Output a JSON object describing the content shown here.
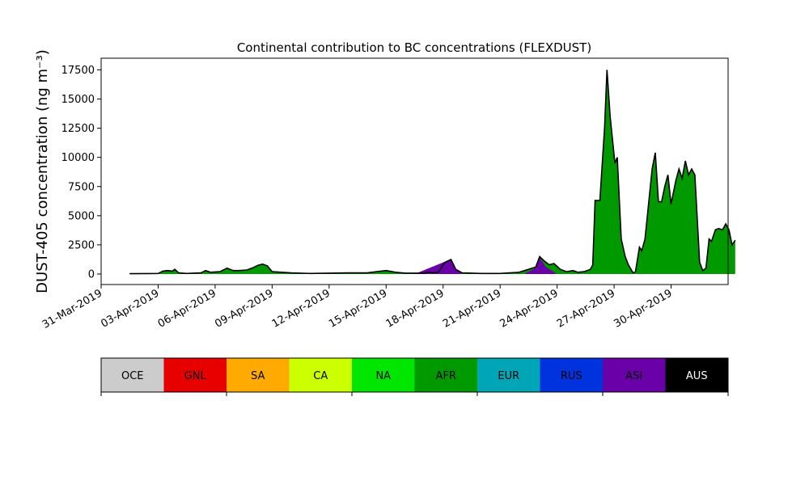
{
  "chart_data": {
    "type": "area",
    "title": "Continental contribution to BC concentrations (FLEXDUST)",
    "ylabel": "DUST-405 concentration (ng m⁻³)",
    "xlabel": "",
    "ylim": [
      -900,
      18500
    ],
    "xlim": [
      "2019-03-31T00:00",
      "2019-05-03T00:00"
    ],
    "yticks": [
      0,
      2500,
      5000,
      7500,
      10000,
      12500,
      15000,
      17500
    ],
    "xticks": [
      "31-Mar-2019",
      "03-Apr-2019",
      "06-Apr-2019",
      "09-Apr-2019",
      "12-Apr-2019",
      "15-Apr-2019",
      "18-Apr-2019",
      "21-Apr-2019",
      "24-Apr-2019",
      "27-Apr-2019",
      "30-Apr-2019"
    ],
    "grid": false,
    "series_total": {
      "name": "",
      "color": "#000000",
      "points": [
        [
          "2019-04-01T12:00",
          30
        ],
        [
          "2019-04-02T12:00",
          40
        ],
        [
          "2019-04-03T00:00",
          50
        ],
        [
          "2019-04-03T06:00",
          250
        ],
        [
          "2019-04-03T12:00",
          300
        ],
        [
          "2019-04-03T18:00",
          250
        ],
        [
          "2019-04-03T21:00",
          400
        ],
        [
          "2019-04-04T02:00",
          100
        ],
        [
          "2019-04-04T12:00",
          50
        ],
        [
          "2019-04-05T06:00",
          100
        ],
        [
          "2019-04-05T12:00",
          300
        ],
        [
          "2019-04-05T18:00",
          150
        ],
        [
          "2019-04-06T06:00",
          200
        ],
        [
          "2019-04-06T15:00",
          500
        ],
        [
          "2019-04-06T23:00",
          300
        ],
        [
          "2019-04-07T06:00",
          300
        ],
        [
          "2019-04-07T16:00",
          350
        ],
        [
          "2019-04-08T00:00",
          550
        ],
        [
          "2019-04-08T06:00",
          750
        ],
        [
          "2019-04-08T12:00",
          850
        ],
        [
          "2019-04-08T18:00",
          700
        ],
        [
          "2019-04-09T00:00",
          200
        ],
        [
          "2019-04-09T12:00",
          150
        ],
        [
          "2019-04-10T00:00",
          100
        ],
        [
          "2019-04-11T00:00",
          50
        ],
        [
          "2019-04-12T00:00",
          80
        ],
        [
          "2019-04-13T00:00",
          100
        ],
        [
          "2019-04-14T00:00",
          100
        ],
        [
          "2019-04-14T12:00",
          200
        ],
        [
          "2019-04-15T00:00",
          300
        ],
        [
          "2019-04-15T12:00",
          150
        ],
        [
          "2019-04-16T00:00",
          80
        ],
        [
          "2019-04-16T12:00",
          80
        ],
        [
          "2019-04-17T00:00",
          80
        ],
        [
          "2019-04-17T06:00",
          150
        ],
        [
          "2019-04-17T12:00",
          100
        ],
        [
          "2019-04-17T18:00",
          150
        ],
        [
          "2019-04-18T02:00",
          1000
        ],
        [
          "2019-04-18T10:00",
          1250
        ],
        [
          "2019-04-18T16:00",
          400
        ],
        [
          "2019-04-19T00:00",
          100
        ],
        [
          "2019-04-20T00:00",
          50
        ],
        [
          "2019-04-21T00:00",
          50
        ],
        [
          "2019-04-21T12:00",
          100
        ],
        [
          "2019-04-22T00:00",
          150
        ],
        [
          "2019-04-22T12:00",
          400
        ],
        [
          "2019-04-22T21:00",
          600
        ],
        [
          "2019-04-23T02:00",
          1500
        ],
        [
          "2019-04-23T08:00",
          1100
        ],
        [
          "2019-04-23T14:00",
          800
        ],
        [
          "2019-04-23T20:00",
          900
        ],
        [
          "2019-04-24T04:00",
          400
        ],
        [
          "2019-04-24T12:00",
          200
        ],
        [
          "2019-04-24T20:00",
          300
        ],
        [
          "2019-04-25T02:00",
          150
        ],
        [
          "2019-04-25T10:00",
          200
        ],
        [
          "2019-04-25T18:00",
          400
        ],
        [
          "2019-04-25T21:00",
          800
        ],
        [
          "2019-04-26T00:00",
          6300
        ],
        [
          "2019-04-26T06:00",
          6300
        ],
        [
          "2019-04-26T12:00",
          12500
        ],
        [
          "2019-04-26T15:00",
          17500
        ],
        [
          "2019-04-26T19:00",
          13500
        ],
        [
          "2019-04-27T01:00",
          9500
        ],
        [
          "2019-04-27T04:00",
          10000
        ],
        [
          "2019-04-27T09:00",
          3000
        ],
        [
          "2019-04-27T14:00",
          1500
        ],
        [
          "2019-04-27T18:00",
          800
        ],
        [
          "2019-04-28T00:00",
          100
        ],
        [
          "2019-04-28T03:00",
          200
        ],
        [
          "2019-04-28T08:00",
          2300
        ],
        [
          "2019-04-28T11:00",
          2000
        ],
        [
          "2019-04-28T15:00",
          3000
        ],
        [
          "2019-04-29T00:00",
          9000
        ],
        [
          "2019-04-29T04:00",
          10400
        ],
        [
          "2019-04-29T08:00",
          6200
        ],
        [
          "2019-04-29T12:00",
          6200
        ],
        [
          "2019-04-29T16:00",
          7500
        ],
        [
          "2019-04-29T20:00",
          8500
        ],
        [
          "2019-04-30T00:00",
          6000
        ],
        [
          "2019-04-30T06:00",
          8000
        ],
        [
          "2019-04-30T10:00",
          9000
        ],
        [
          "2019-04-30T14:00",
          8200
        ],
        [
          "2019-04-30T18:00",
          9700
        ],
        [
          "2019-04-30T22:00",
          8500
        ],
        [
          "2019-05-01T02:00",
          9000
        ],
        [
          "2019-05-01T06:00",
          8500
        ],
        [
          "2019-05-01T12:00",
          1000
        ],
        [
          "2019-05-01T16:00",
          300
        ],
        [
          "2019-05-01T20:00",
          500
        ],
        [
          "2019-05-02T00:00",
          3000
        ],
        [
          "2019-05-02T03:00",
          2800
        ],
        [
          "2019-05-02T08:00",
          3800
        ],
        [
          "2019-05-02T12:00",
          3900
        ],
        [
          "2019-05-02T17:00",
          3800
        ],
        [
          "2019-05-02T21:00",
          4300
        ],
        [
          "2019-05-03T01:00",
          3800
        ],
        [
          "2019-05-03T05:00",
          2500
        ],
        [
          "2019-05-03T09:00",
          2900
        ]
      ]
    },
    "series_asi": {
      "name": "ASI",
      "color": "#6a00a8",
      "points": [
        [
          "2019-04-16T12:00",
          0
        ],
        [
          "2019-04-18T00:00",
          1000
        ],
        [
          "2019-04-18T10:00",
          1250
        ],
        [
          "2019-04-18T16:00",
          400
        ],
        [
          "2019-04-19T00:00",
          0
        ],
        [
          "2019-04-22T06:00",
          0
        ],
        [
          "2019-04-22T21:00",
          500
        ],
        [
          "2019-04-23T02:00",
          1400
        ],
        [
          "2019-04-23T10:00",
          600
        ],
        [
          "2019-04-24T00:00",
          0
        ]
      ]
    },
    "legend": {
      "entries": [
        "OCE",
        "GNL",
        "SA",
        "CA",
        "NA",
        "AFR",
        "EUR",
        "RUS",
        "ASI",
        "AUS"
      ],
      "colors": [
        "#cccccc",
        "#e60000",
        "#ffaa00",
        "#ccff00",
        "#00e600",
        "#009900",
        "#00a6b5",
        "#0033dd",
        "#6a00a8",
        "#000000"
      ],
      "text_colors": [
        "#000000",
        "#000000",
        "#000000",
        "#000000",
        "#000000",
        "#000000",
        "#000000",
        "#000000",
        "#000000",
        "#ffffff"
      ],
      "placement": "bottom"
    }
  },
  "colors": {
    "fill_main": "#009900",
    "line_total": "#000000"
  }
}
